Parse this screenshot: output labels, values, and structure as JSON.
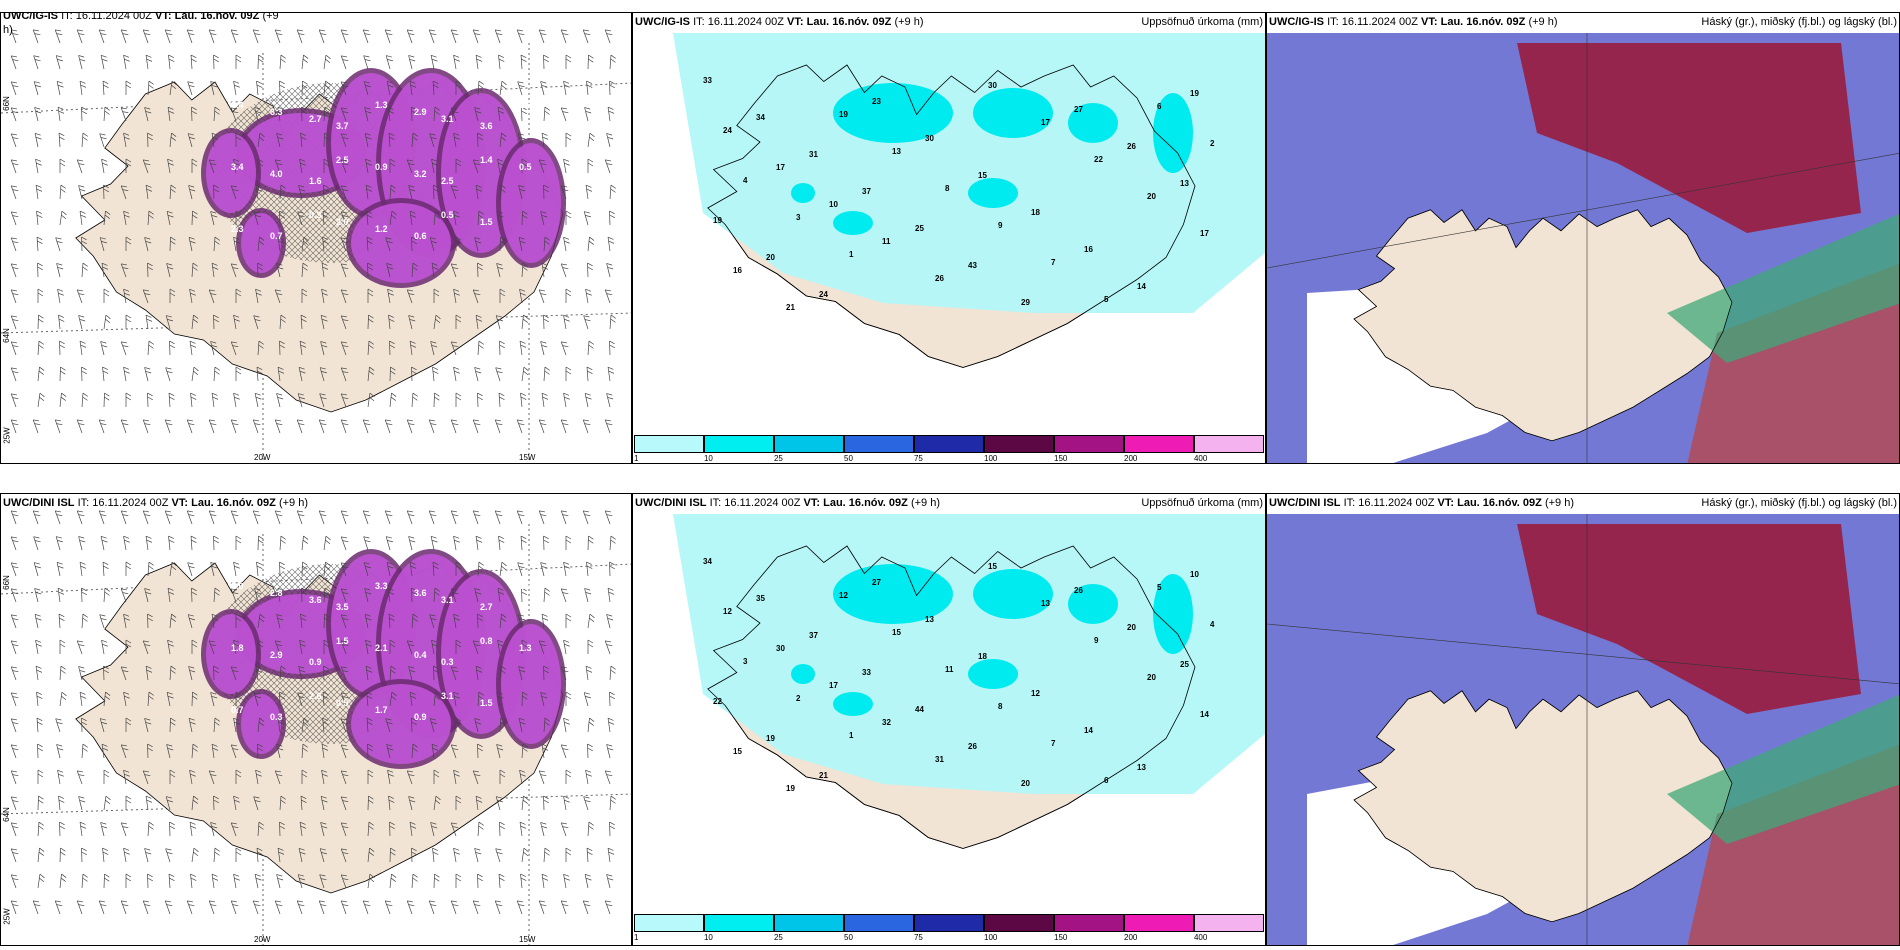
{
  "top": {
    "left": {
      "model": "UWC/IG-IS",
      "it": "IT: 16.11.2024 00Z",
      "vt_label": "VT:",
      "vt": "Lau. 16.nóv. 09Z",
      "lead": "(+9",
      "lead2": "h)"
    },
    "center": {
      "model": "UWC/IG-IS",
      "it": "IT: 16.11.2024 00Z",
      "vt_label": "VT:",
      "vt": "Lau. 16.nóv. 09Z",
      "lead": "(+9 h)",
      "field": "Uppsöfnuð úrkoma (mm)"
    },
    "right": {
      "model": "UWC/IG-IS",
      "it": "IT: 16.11.2024 00Z",
      "vt_label": "VT:",
      "vt": "Lau. 16.nóv. 09Z",
      "lead": "(+9 h)",
      "field": "Háský (gr.), miðský (fj.bl.) og lágský (bl.)"
    }
  },
  "bottom": {
    "left": {
      "model": "UWC/DINI ISL",
      "it": "IT: 16.11.2024 00Z",
      "vt_label": "VT:",
      "vt": "Lau. 16.nóv. 09Z",
      "lead": "(+9 h)"
    },
    "center": {
      "model": "UWC/DINI ISL",
      "it": "IT: 16.11.2024 00Z",
      "vt_label": "VT:",
      "vt": "Lau. 16.nóv. 09Z",
      "lead": "(+9 h)",
      "field": "Uppsöfnuð úrkoma (mm)"
    },
    "right": {
      "model": "UWC/DINI ISL",
      "it": "IT: 16.11.2024 00Z",
      "vt_label": "VT:",
      "vt": "Lau. 16.nóv. 09Z",
      "lead": "(+9 h)",
      "field": "Háský (gr.), miðský (fj.bl.) og lágský (bl.)"
    }
  },
  "axes": {
    "lon_20": "20W",
    "lon_15": "15W",
    "lat_66": "66N",
    "lat_64": "64N",
    "lon_25": "25W"
  },
  "legend": {
    "ticks": [
      "1",
      "10",
      "25",
      "50",
      "75",
      "100",
      "150",
      "200",
      "400"
    ],
    "colors": [
      "#b8f9fb",
      "#00eef0",
      "#00c5e8",
      "#2a66e0",
      "#1f2aa8",
      "#5c0845",
      "#a41383",
      "#ee1bb4",
      "#f4b3ee"
    ]
  },
  "colors": {
    "land": "#f2e4d4",
    "precip_light": "#b2f7f8",
    "precip_mid": "#00ebef",
    "magenta": "#c154d8",
    "purple_dark": "#6b2a70",
    "cloud_blue": "#5a60cc",
    "cloud_red": "#9a1c3e",
    "cloud_green": "#3fa87a"
  },
  "precip_top": [
    "33",
    "34",
    "31",
    "37",
    "25",
    "43",
    "29",
    "27",
    "26",
    "13",
    "19",
    "20",
    "24",
    "23",
    "30",
    "15",
    "18",
    "16",
    "14",
    "19",
    "24",
    "17",
    "10",
    "11",
    "26",
    "30",
    "17",
    "22",
    "20",
    "17",
    "16",
    "21",
    "19",
    "13",
    "8",
    "9",
    "7",
    "5",
    "6",
    "2",
    "4",
    "3",
    "1"
  ],
  "precip_bottom": [
    "34",
    "35",
    "37",
    "33",
    "44",
    "26",
    "20",
    "26",
    "20",
    "25",
    "22",
    "19",
    "21",
    "27",
    "13",
    "18",
    "12",
    "14",
    "13",
    "10",
    "12",
    "30",
    "17",
    "32",
    "31",
    "15",
    "13",
    "9",
    "20",
    "14",
    "15",
    "19",
    "12",
    "15",
    "11",
    "8",
    "7",
    "6",
    "5",
    "4",
    "3",
    "2",
    "1"
  ],
  "wind_top": [
    "0.4",
    "3.3",
    "2.7",
    "3.7",
    "1.3",
    "2.9",
    "3.1",
    "3.6",
    "1.3",
    "3.4",
    "4.0",
    "1.6",
    "2.5",
    "0.9",
    "3.2",
    "2.5",
    "1.4",
    "0.5",
    "2.3",
    "0.7",
    "0.3",
    "2.0",
    "1.2",
    "0.6",
    "0.5",
    "1.5"
  ],
  "wind_bottom": [
    "3.0",
    "2.8",
    "3.6",
    "3.5",
    "3.3",
    "3.6",
    "3.1",
    "2.7",
    "1.9",
    "1.8",
    "2.9",
    "0.9",
    "1.5",
    "2.1",
    "0.4",
    "0.3",
    "0.8",
    "1.3",
    "0.7",
    "0.3",
    "2.6",
    "0.5",
    "1.7",
    "0.9",
    "3.1",
    "1.5"
  ]
}
